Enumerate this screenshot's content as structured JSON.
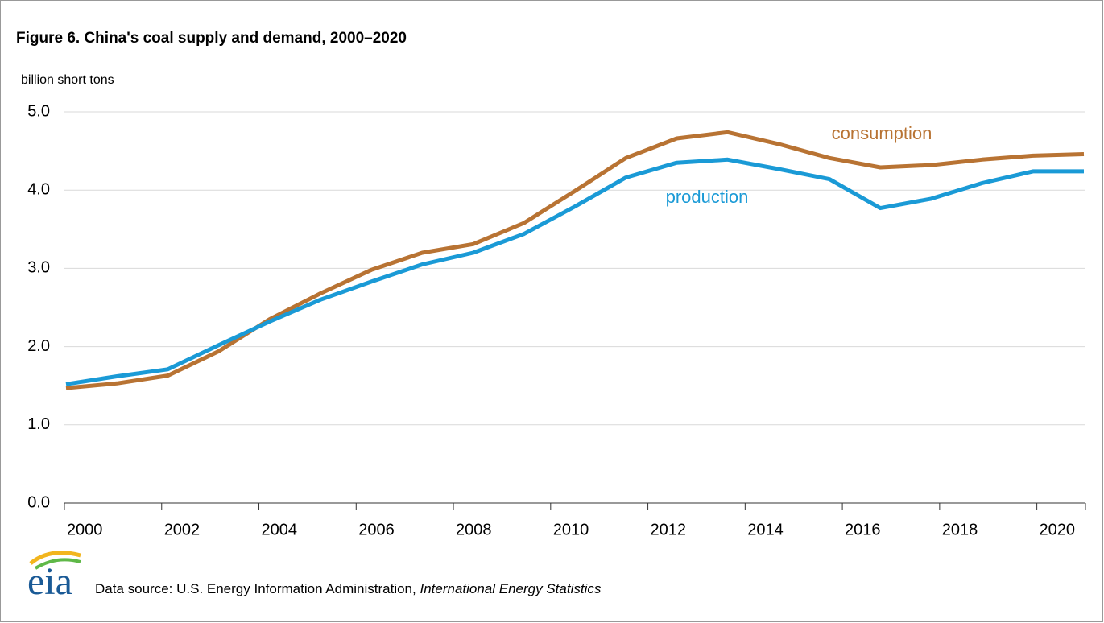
{
  "chart_data": {
    "type": "line",
    "title": "Figure 6. China's coal supply and demand, 2000–2020",
    "y_label": "billion short tons",
    "categories": [
      "2000",
      null,
      "2002",
      null,
      "2004",
      null,
      "2006",
      null,
      "2008",
      null,
      "2010",
      null,
      "2012",
      null,
      "2014",
      null,
      "2016",
      null,
      "2018",
      null,
      "2020"
    ],
    "series": [
      {
        "name": "consumption",
        "color": "#b87333",
        "values": [
          1.47,
          1.53,
          1.63,
          1.94,
          2.35,
          2.68,
          2.98,
          3.2,
          3.31,
          3.58,
          3.99,
          4.41,
          4.66,
          4.74,
          4.59,
          4.41,
          4.29,
          4.32,
          4.39,
          4.44,
          4.46
        ]
      },
      {
        "name": "production",
        "color": "#1a9ad6",
        "values": [
          1.52,
          1.62,
          1.71,
          2.02,
          2.32,
          2.6,
          2.83,
          3.05,
          3.2,
          3.44,
          3.79,
          4.16,
          4.35,
          4.39,
          4.27,
          4.14,
          3.77,
          3.89,
          4.09,
          4.24,
          4.24
        ]
      }
    ],
    "ylim": [
      0,
      5
    ],
    "yticks": [
      {
        "value": 0,
        "label": "0.0"
      },
      {
        "value": 1,
        "label": "1.0"
      },
      {
        "value": 2,
        "label": "2.0"
      },
      {
        "value": 3,
        "label": "3.0"
      },
      {
        "value": 4,
        "label": "4.0"
      },
      {
        "value": 5,
        "label": "5.0"
      }
    ],
    "grid": true,
    "logo": "eia",
    "source": "Data source: U.S. Energy Information Administration, ",
    "source_title": "International Energy Statistics"
  }
}
